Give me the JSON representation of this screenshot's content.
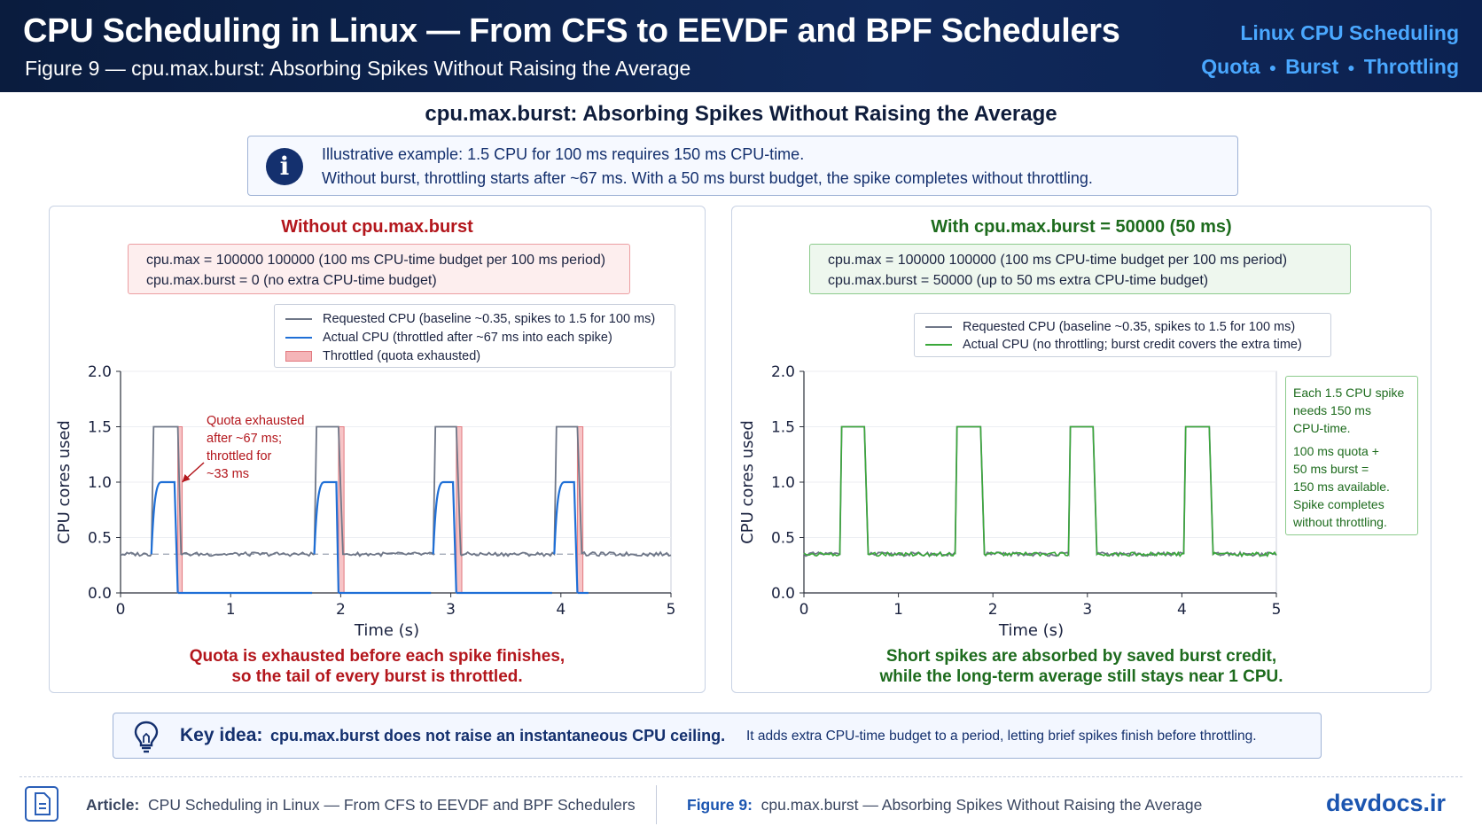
{
  "header": {
    "title": "CPU Scheduling in Linux — From CFS to EEVDF and BPF Schedulers",
    "subtitle": "Figure 9 — cpu.max.burst: Absorbing Spikes Without Raising the Average",
    "brand": "Linux CPU Scheduling",
    "tags": [
      "Quota",
      "Burst",
      "Throttling"
    ]
  },
  "main_title": "cpu.max.burst: Absorbing Spikes Without Raising the Average",
  "info": {
    "icon": "info-icon",
    "line1": "Illustrative example: 1.5 CPU for 100 ms requires 150 ms CPU-time.",
    "line2": "Without burst, throttling starts after ~67 ms. With a 50 ms burst budget, the spike completes without throttling."
  },
  "left_panel": {
    "title": "Without cpu.max.burst",
    "config_line1": "cpu.max = 100000 100000 (100 ms CPU-time budget per 100 ms period)",
    "config_line2": "cpu.max.burst = 0 (no extra CPU-time budget)",
    "annotation": [
      "Quota exhausted",
      "after ~67 ms;",
      "throttled for",
      "~33 ms"
    ],
    "caption_line1": "Quota is exhausted before each spike finishes,",
    "caption_line2": "so the tail of every burst is throttled."
  },
  "right_panel": {
    "title": "With cpu.max.burst = 50000 (50 ms)",
    "config_line1": "cpu.max = 100000 100000 (100 ms CPU-time budget per 100 ms period)",
    "config_line2": "cpu.max.burst = 50000 (up to 50 ms extra CPU-time budget)",
    "note": {
      "p1": [
        "Each 1.5 CPU spike",
        "needs 150 ms",
        "CPU-time."
      ],
      "p2": [
        "100 ms quota +",
        "50 ms burst =",
        "150 ms available.",
        "Spike completes",
        "without throttling."
      ]
    },
    "caption_line1": "Short spikes are absorbed by saved burst credit,",
    "caption_line2": "while the long-term average still stays near 1 CPU."
  },
  "key_idea": {
    "label": "Key idea:",
    "main": "cpu.max.burst does not raise an instantaneous CPU ceiling.",
    "sub": "It adds extra CPU-time budget to a period, letting brief spikes finish before throttling."
  },
  "footer": {
    "article_label": "Article:",
    "article_text": "CPU Scheduling in Linux — From CFS to EEVDF and BPF Schedulers",
    "figure_label": "Figure 9:",
    "figure_text": "cpu.max.burst — Absorbing Spikes Without Raising the Average",
    "brand": "devdocs.ir"
  },
  "colors": {
    "header_bg": "#0a1c3e",
    "accent_blue": "#4aa8ff",
    "red": "#b3161c",
    "green": "#1d6b1d",
    "requested": "#6f7788",
    "actual_left": "#1f6fd6",
    "actual_right": "#3aa83a",
    "throttle_fill": "#f5b5b8"
  },
  "chart_data": [
    {
      "type": "line",
      "xlabel": "Time (s)",
      "ylabel": "CPU cores used",
      "xlim": [
        0,
        5
      ],
      "ylim": [
        0,
        2.0
      ],
      "xticks": [
        "0",
        "1",
        "2",
        "3",
        "4",
        "5"
      ],
      "yticks": [
        "0.0",
        "0.5",
        "1.0",
        "1.5",
        "2.0"
      ],
      "baseline": 0.35,
      "spikes": [
        {
          "rise": 0.28,
          "top_start": 0.3,
          "top_end": 0.52,
          "fall": 0.55
        },
        {
          "rise": 1.76,
          "top_start": 1.78,
          "top_end": 1.98,
          "fall": 2.02
        },
        {
          "rise": 2.84,
          "top_start": 2.86,
          "top_end": 3.05,
          "fall": 3.09
        },
        {
          "rise": 3.94,
          "top_start": 3.96,
          "top_end": 4.15,
          "fall": 4.19
        }
      ],
      "actual_spikes": [
        {
          "rise": 0.28,
          "ramp_end": 0.37,
          "plateau_end": 0.49,
          "drop": 0.52
        },
        {
          "rise": 1.76,
          "ramp_end": 1.85,
          "plateau_end": 1.96,
          "drop": 1.98
        },
        {
          "rise": 2.84,
          "ramp_end": 2.93,
          "plateau_end": 3.02,
          "drop": 3.05
        },
        {
          "rise": 3.94,
          "ramp_end": 4.03,
          "plateau_end": 4.12,
          "drop": 4.15
        }
      ],
      "throttled_intervals": [
        [
          0.52,
          0.56
        ],
        [
          1.98,
          2.03
        ],
        [
          3.05,
          3.1
        ],
        [
          4.15,
          4.2
        ]
      ],
      "actual_peak": 1.0,
      "spike_level": 1.5,
      "series": [
        {
          "name": "Requested CPU (baseline ~0.35, spikes to 1.5 for 100 ms)"
        },
        {
          "name": "Actual CPU (throttled after ~67 ms into each spike)"
        },
        {
          "name": "Throttled (quota exhausted)"
        }
      ],
      "legend_position": "top-right"
    },
    {
      "type": "line",
      "xlabel": "Time (s)",
      "ylabel": "CPU cores used",
      "xlim": [
        0,
        5
      ],
      "ylim": [
        0,
        2.0
      ],
      "xticks": [
        "0",
        "1",
        "2",
        "3",
        "4",
        "5"
      ],
      "yticks": [
        "0.0",
        "0.5",
        "1.0",
        "1.5",
        "2.0"
      ],
      "baseline": 0.35,
      "spikes": [
        {
          "rise": 0.38,
          "top_start": 0.4,
          "top_end": 0.64,
          "fall": 0.68
        },
        {
          "rise": 1.6,
          "top_start": 1.62,
          "top_end": 1.87,
          "fall": 1.91
        },
        {
          "rise": 2.8,
          "top_start": 2.82,
          "top_end": 3.06,
          "fall": 3.1
        },
        {
          "rise": 4.02,
          "top_start": 4.04,
          "top_end": 4.29,
          "fall": 4.33
        }
      ],
      "spike_level": 1.5,
      "series": [
        {
          "name": "Requested CPU (baseline ~0.35, spikes to 1.5 for 100 ms)"
        },
        {
          "name": "Actual CPU (no throttling; burst credit covers the extra time)"
        }
      ],
      "legend_position": "top-right"
    }
  ]
}
